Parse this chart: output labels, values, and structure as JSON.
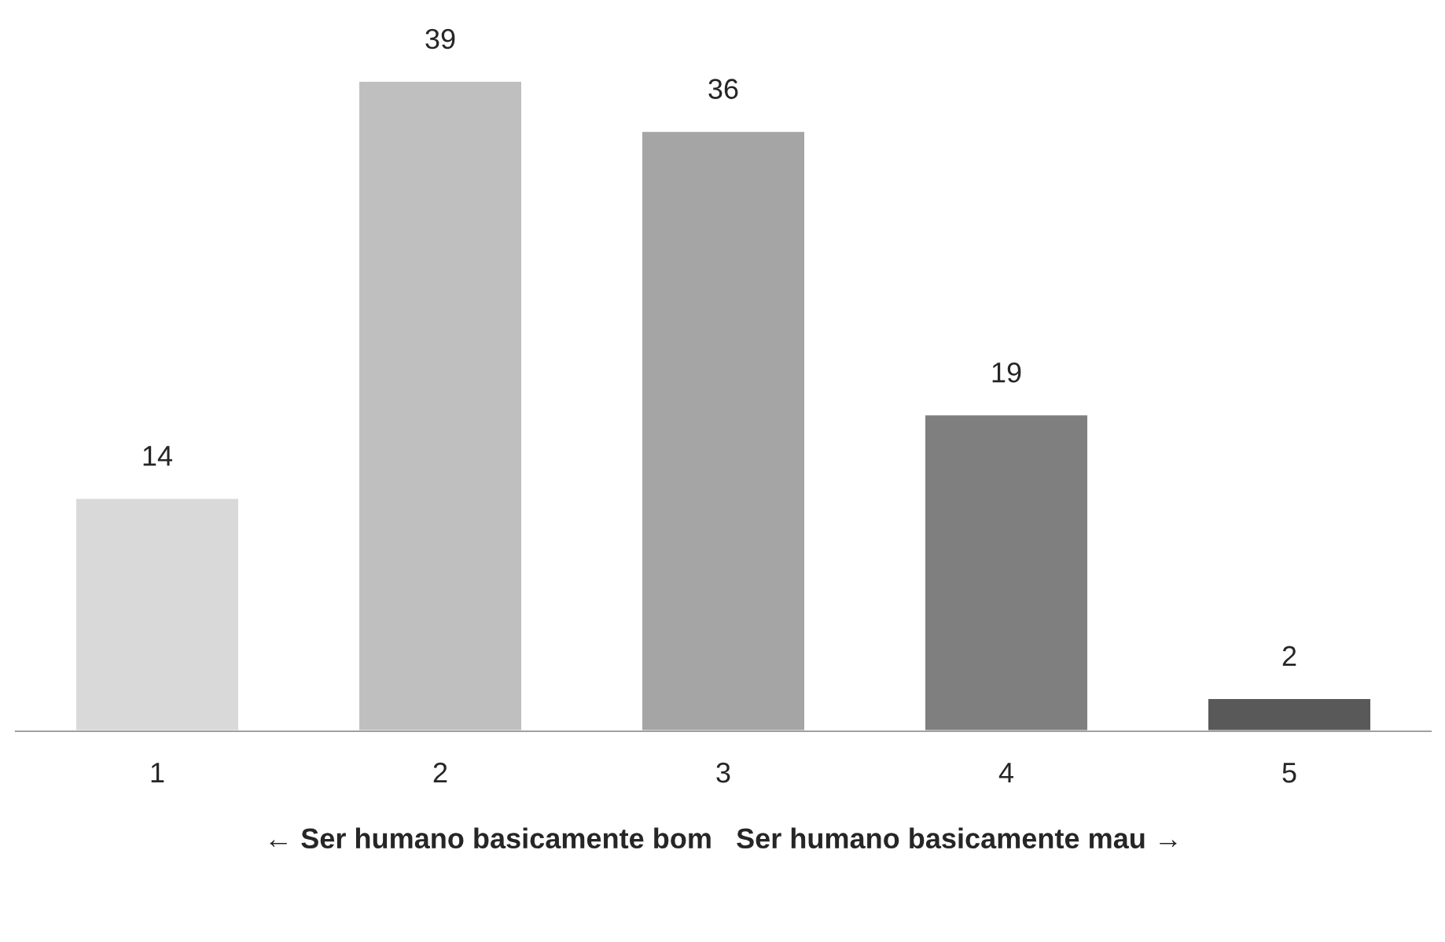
{
  "chart_data": {
    "type": "bar",
    "categories": [
      "1",
      "2",
      "3",
      "4",
      "5"
    ],
    "values": [
      14,
      39,
      36,
      19,
      2
    ],
    "colors": [
      "#d9d9d9",
      "#bfbfbf",
      "#a5a5a5",
      "#7f7f7f",
      "#595959"
    ],
    "xlabel": "← Ser humano basicamente bom   Ser humano basicamente mau →",
    "data_labels": true,
    "grid": false
  }
}
